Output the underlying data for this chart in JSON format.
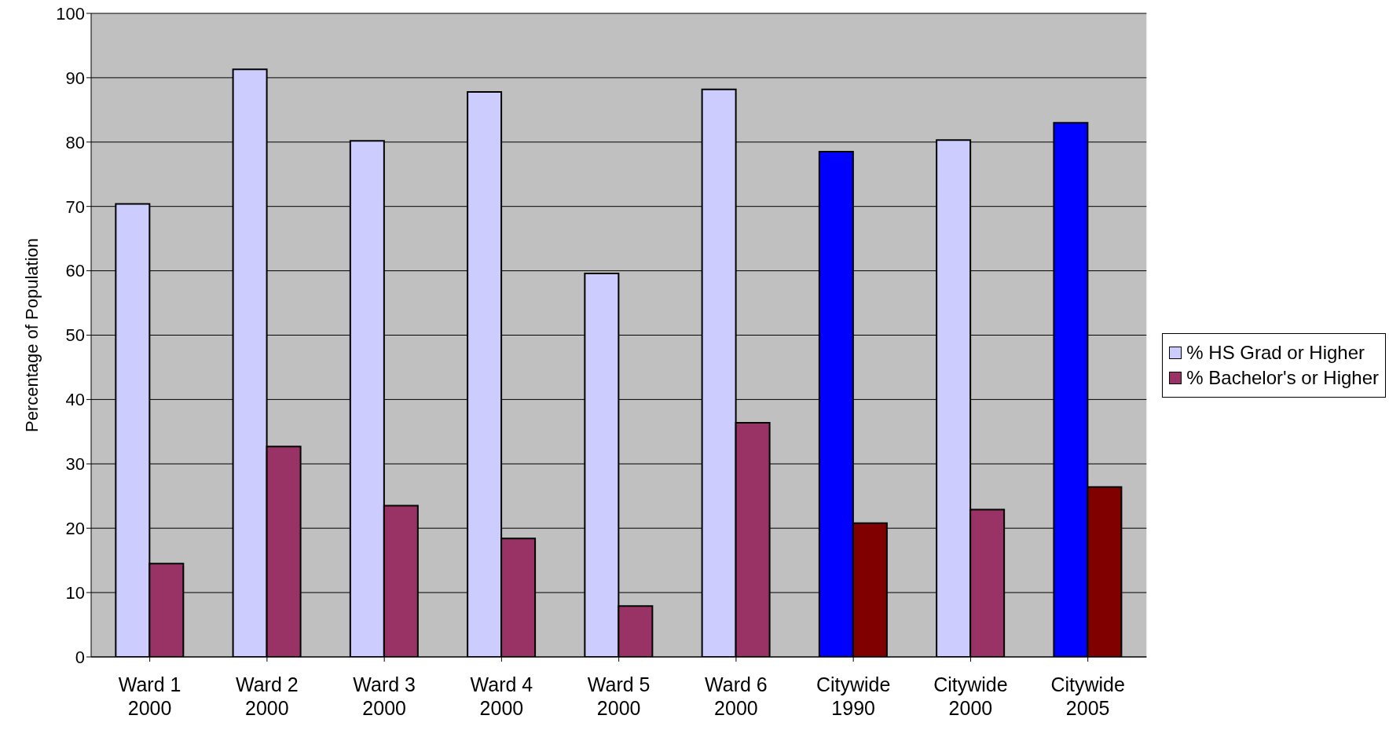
{
  "chart_data": {
    "type": "bar",
    "ylabel": "Percentage of Population",
    "categories": [
      "Ward 1\n2000",
      "Ward 2\n2000",
      "Ward 3\n2000",
      "Ward 4\n2000",
      "Ward 5\n2000",
      "Ward 6\n2000",
      "Citywide\n1990",
      "Citywide\n2000",
      "Citywide\n2005"
    ],
    "series": [
      {
        "name": "% HS Grad or Higher",
        "color": "#ccccff",
        "colors": [
          "#ccccff",
          "#ccccff",
          "#ccccff",
          "#ccccff",
          "#ccccff",
          "#ccccff",
          "#0000ff",
          "#ccccff",
          "#0000ff"
        ],
        "values": [
          70.4,
          91.3,
          80.2,
          87.8,
          59.6,
          88.2,
          78.5,
          80.3,
          83.0
        ]
      },
      {
        "name": "% Bachelor's or Higher",
        "color": "#993366",
        "colors": [
          "#993366",
          "#993366",
          "#993366",
          "#993366",
          "#993366",
          "#993366",
          "#800000",
          "#993366",
          "#800000"
        ],
        "values": [
          14.5,
          32.7,
          23.5,
          18.4,
          7.9,
          36.4,
          20.8,
          22.9,
          26.4
        ]
      }
    ],
    "ylim": [
      0,
      100
    ],
    "yticks": [
      0,
      10,
      20,
      30,
      40,
      50,
      60,
      70,
      80,
      90,
      100
    ],
    "grid": "y",
    "legend": "right"
  }
}
